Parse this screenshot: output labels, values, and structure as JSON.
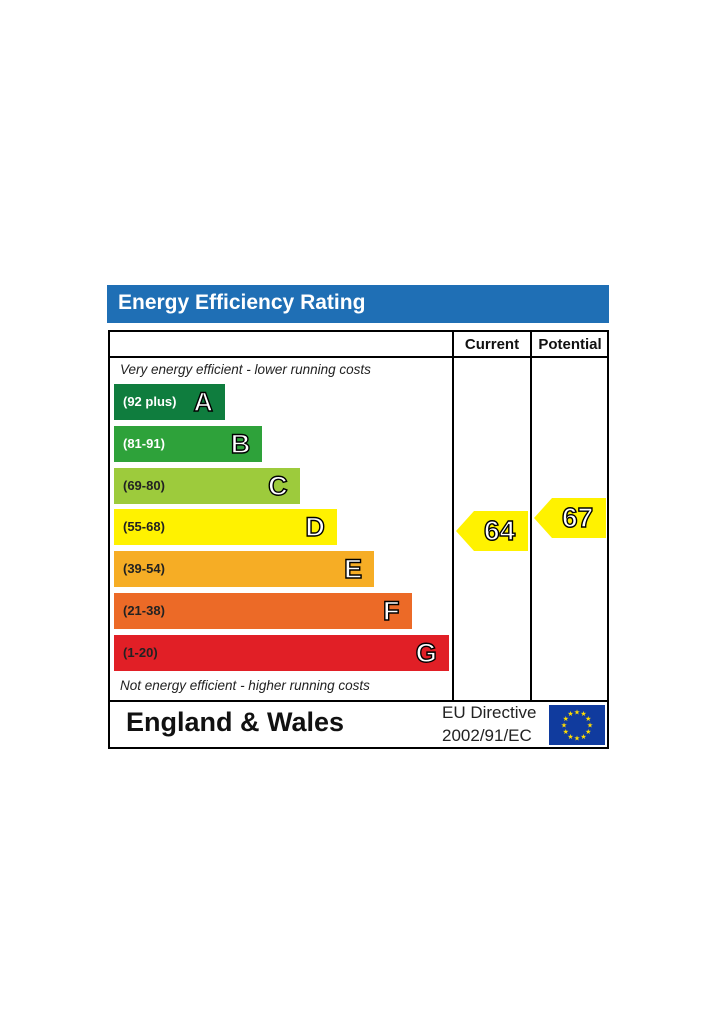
{
  "title": "Energy Efficiency Rating",
  "columns": {
    "current": "Current",
    "potential": "Potential"
  },
  "notes": {
    "top": "Very energy efficient - lower running costs",
    "bottom": "Not energy efficient - higher running costs"
  },
  "footer": {
    "region": "England & Wales",
    "directive_line1": "EU Directive",
    "directive_line2": "2002/91/EC"
  },
  "colors": {
    "title_bar": "#1f6fb5",
    "flag": "#103b9e",
    "flag_stars": "#ffdd00",
    "marker": "#fff200"
  },
  "icons": {
    "flag": "eu-flag-icon"
  },
  "chart_data": {
    "type": "bar",
    "title": "Energy Efficiency Rating",
    "bands": [
      {
        "letter": "A",
        "range": "(92 plus)",
        "color": "#0f7d3e",
        "range_text_color": "#ffffff"
      },
      {
        "letter": "B",
        "range": "(81-91)",
        "color": "#2ea23a",
        "range_text_color": "#ffffff"
      },
      {
        "letter": "C",
        "range": "(69-80)",
        "color": "#9dcb3c",
        "range_text_color": "#222222"
      },
      {
        "letter": "D",
        "range": "(55-68)",
        "color": "#fff200",
        "range_text_color": "#222222"
      },
      {
        "letter": "E",
        "range": "(39-54)",
        "color": "#f6ad25",
        "range_text_color": "#222222"
      },
      {
        "letter": "F",
        "range": "(21-38)",
        "color": "#ec6a27",
        "range_text_color": "#222222"
      },
      {
        "letter": "G",
        "range": "(1-20)",
        "color": "#e11f26",
        "range_text_color": "#222222"
      }
    ],
    "current": {
      "value": "64",
      "band": "D"
    },
    "potential": {
      "value": "67",
      "band": "D"
    }
  }
}
